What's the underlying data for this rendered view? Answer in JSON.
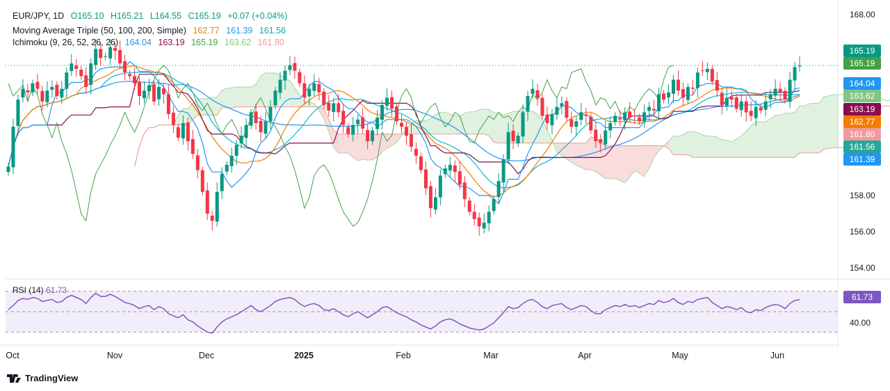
{
  "legend": {
    "symbol": "EUR/JPY, 1D",
    "open": "O165.10",
    "high": "H165.21",
    "low": "L164.55",
    "close": "C165.19",
    "change": "+0.07 (+0.04%)",
    "ma_label": "Moving Average Triple (50, 100, 200, Simple)",
    "ma50": "162.77",
    "ma100": "161.39",
    "ma200": "161.56",
    "ichimoku_label": "Ichimoku (9, 26, 52, 26, 26)",
    "ich_conversion": "164.04",
    "ich_base": "163.19",
    "ich_lagging": "165.19",
    "ich_spanA": "163.62",
    "ich_spanB": "161.80"
  },
  "rsi": {
    "label": "RSI (14)",
    "value": "61.73"
  },
  "brand": "TradingView",
  "colors": {
    "up": "#089981",
    "down": "#f23645",
    "ma50": "#f57c00",
    "ma100": "#2196f3",
    "ma200": "#00bcd4",
    "conversion": "#2196f3",
    "base": "#880e4f",
    "lagging": "#43a047",
    "cloud_up": "#a5d6a7",
    "cloud_down": "#ef9a9a",
    "rsi": "#7e57c2"
  },
  "price_tags": [
    {
      "value": "165.19",
      "color": "#089981"
    },
    {
      "value": "165.19",
      "color": "#43a047"
    },
    {
      "value": "164.04",
      "color": "#2196f3"
    },
    {
      "value": "163.62",
      "color": "#81c784"
    },
    {
      "value": "163.19",
      "color": "#880e4f"
    },
    {
      "value": "162.77",
      "color": "#f57c00"
    },
    {
      "value": "161.80",
      "color": "#ef9a9a"
    },
    {
      "value": "161.56",
      "color": "#26a69a"
    },
    {
      "value": "161.39",
      "color": "#2196f3"
    }
  ],
  "chart_data": {
    "type": "candlestick",
    "y_ticks": [
      "168.00",
      "166.00",
      "164.00",
      "162.00",
      "160.00",
      "158.00",
      "156.00",
      "154.00"
    ],
    "y_labels_shown": [
      "168.00",
      "158.00",
      "156.00",
      "154.00"
    ],
    "ylim": [
      153.5,
      168.5
    ],
    "x_labels": [
      "Oct",
      "Nov",
      "Dec",
      "2025",
      "Feb",
      "Mar",
      "Apr",
      "May",
      "Jun"
    ],
    "rsi_tick": "40.00",
    "rsi_ylim": [
      20,
      80
    ],
    "rsi_levels": [
      70,
      50,
      30
    ],
    "closes": [
      159.6,
      161.8,
      163.3,
      163.9,
      163.7,
      164.2,
      163.9,
      163.2,
      163.8,
      164.0,
      163.5,
      163.9,
      164.8,
      165.3,
      165.0,
      164.6,
      164.0,
      165.3,
      166.1,
      165.6,
      165.7,
      166.2,
      166.0,
      165.3,
      164.8,
      164.6,
      164.2,
      163.5,
      163.8,
      164.1,
      163.2,
      164.0,
      163.6,
      162.5,
      161.9,
      161.2,
      162.0,
      161.0,
      160.3,
      159.4,
      158.2,
      157.0,
      156.6,
      158.2,
      159.2,
      159.7,
      160.2,
      160.8,
      161.3,
      161.9,
      162.6,
      162.0,
      161.5,
      162.1,
      162.9,
      163.8,
      164.4,
      164.9,
      165.2,
      164.9,
      164.2,
      163.4,
      163.9,
      164.2,
      163.7,
      163.0,
      162.7,
      163.1,
      162.6,
      161.9,
      161.4,
      161.9,
      162.2,
      161.7,
      161.0,
      161.6,
      162.3,
      163.0,
      163.4,
      162.8,
      162.1,
      161.8,
      161.3,
      160.7,
      160.2,
      159.4,
      158.4,
      157.3,
      157.9,
      159.1,
      159.5,
      159.7,
      159.3,
      158.6,
      157.8,
      157.1,
      156.7,
      156.3,
      156.5,
      157.1,
      157.8,
      158.8,
      160.0,
      161.5,
      161.0,
      161.3,
      162.6,
      163.5,
      163.9,
      163.4,
      162.4,
      162.0,
      162.5,
      162.9,
      163.1,
      162.3,
      161.8,
      162.1,
      162.6,
      162.4,
      161.6,
      161.0,
      160.9,
      161.6,
      162.0,
      162.4,
      162.2,
      162.6,
      162.3,
      162.4,
      162.1,
      162.6,
      162.9,
      162.7,
      163.6,
      163.3,
      163.7,
      164.4,
      163.8,
      163.4,
      164.0,
      163.9,
      164.8,
      164.9,
      165.0,
      164.3,
      163.8,
      163.0,
      163.4,
      163.3,
      162.8,
      163.2,
      162.6,
      162.4,
      162.9,
      162.7,
      163.2,
      163.6,
      163.9,
      163.7,
      163.3,
      164.4,
      165.1,
      165.19
    ],
    "rsi_values": [
      52,
      56,
      61,
      63,
      62,
      64,
      63,
      60,
      61,
      62,
      59,
      60,
      64,
      66,
      64,
      62,
      58,
      64,
      68,
      65,
      65,
      67,
      65,
      62,
      59,
      58,
      56,
      53,
      55,
      56,
      52,
      55,
      53,
      48,
      46,
      44,
      47,
      42,
      40,
      36,
      33,
      30,
      29,
      35,
      40,
      43,
      45,
      47,
      50,
      53,
      56,
      52,
      50,
      53,
      56,
      60,
      62,
      63,
      64,
      62,
      58,
      55,
      57,
      58,
      56,
      52,
      51,
      53,
      50,
      47,
      45,
      48,
      50,
      47,
      44,
      47,
      50,
      54,
      55,
      52,
      49,
      47,
      45,
      42,
      40,
      37,
      35,
      33,
      36,
      40,
      42,
      43,
      41,
      38,
      36,
      34,
      33,
      32,
      33,
      36,
      39,
      44,
      49,
      55,
      53,
      54,
      58,
      61,
      62,
      59,
      55,
      53,
      56,
      57,
      58,
      54,
      52,
      54,
      56,
      55,
      51,
      48,
      48,
      52,
      54,
      56,
      55,
      57,
      55,
      56,
      54,
      56,
      58,
      57,
      61,
      59,
      60,
      63,
      59,
      57,
      60,
      59,
      62,
      63,
      64,
      59,
      56,
      53,
      55,
      54,
      52,
      54,
      50,
      49,
      52,
      51,
      54,
      56,
      57,
      56,
      53,
      58,
      61,
      61.73
    ]
  }
}
